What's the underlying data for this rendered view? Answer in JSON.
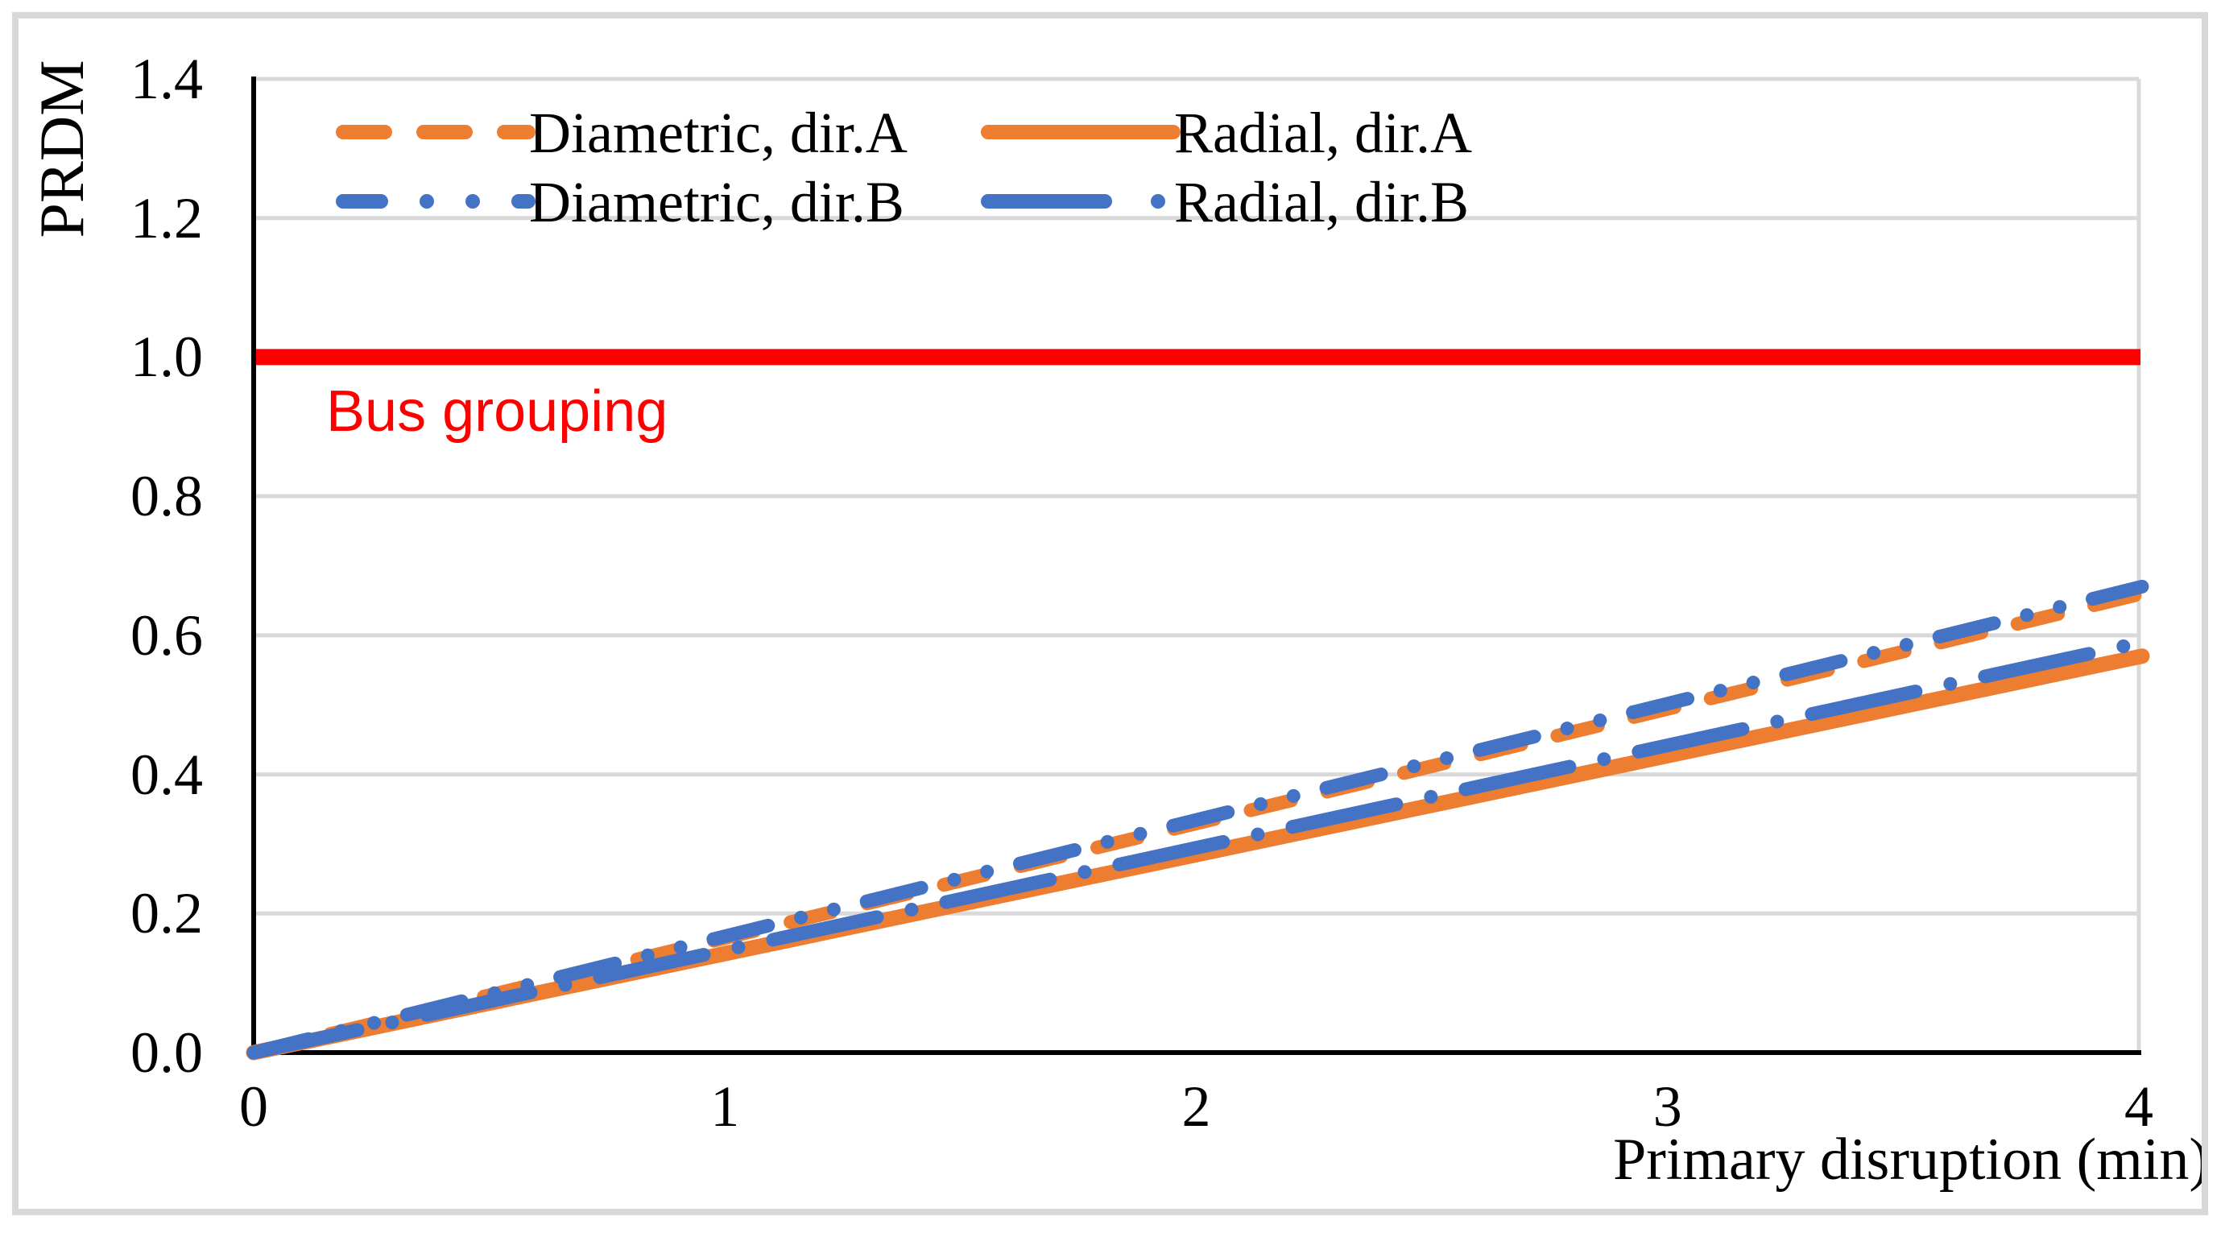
{
  "chart_data": {
    "type": "line",
    "title": "",
    "xlabel": "Primary disruption (min)",
    "ylabel": "PRDM",
    "xlim": [
      0,
      4
    ],
    "ylim": [
      0,
      1.4
    ],
    "grid": "horizontal",
    "legend_position": "top-left-inside",
    "xticks": {
      "values": [
        0,
        1,
        2,
        3,
        4
      ],
      "labels": [
        "0",
        "1",
        "2",
        "3",
        "4"
      ]
    },
    "yticks": {
      "values": [
        0.0,
        0.2,
        0.4,
        0.6,
        0.8,
        1.0,
        1.2,
        1.4
      ],
      "labels": [
        "0.0",
        "0.2",
        "0.4",
        "0.6",
        "0.8",
        "1.0",
        "1.2",
        "1.4"
      ]
    },
    "series": [
      {
        "name": "Diametric, dir.A",
        "color": "#ED7D31",
        "style": "dash",
        "x": [
          0,
          4
        ],
        "y": [
          0,
          0.66
        ]
      },
      {
        "name": "Diametric, dir.B",
        "color": "#4472C4",
        "style": "dash-dot-dot",
        "x": [
          0,
          4
        ],
        "y": [
          0,
          0.67
        ]
      },
      {
        "name": "Radial, dir.A",
        "color": "#ED7D31",
        "style": "solid",
        "x": [
          0,
          4
        ],
        "y": [
          0,
          0.57
        ]
      },
      {
        "name": "Radial, dir.B",
        "color": "#4472C4",
        "style": "dash-dot",
        "x": [
          0,
          4
        ],
        "y": [
          0,
          0.59
        ]
      }
    ],
    "annotation": {
      "label": "Bus grouping",
      "value": 1.0,
      "color": "#FF0000"
    }
  }
}
